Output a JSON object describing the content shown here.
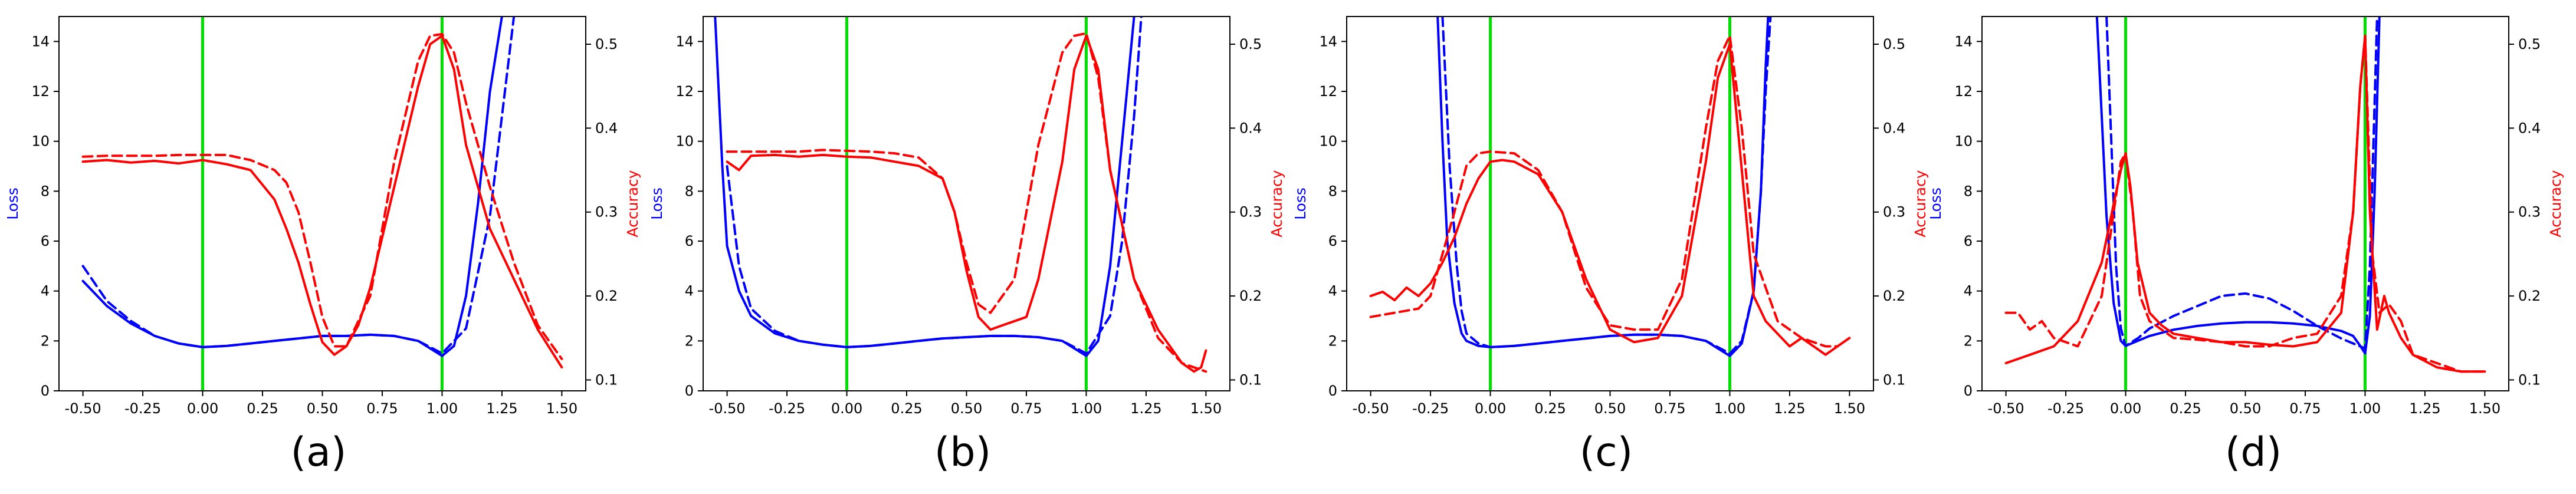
{
  "figure": {
    "colors": {
      "loss": "#0000ff",
      "accuracy": "#ff0000",
      "marker": "#00e000",
      "axes": "#000000"
    },
    "xticks": [
      -0.5,
      -0.25,
      0.0,
      0.25,
      0.5,
      0.75,
      1.0,
      1.25,
      1.5
    ],
    "xtick_labels": [
      "-0.50",
      "-0.25",
      "0.00",
      "0.25",
      "0.50",
      "0.75",
      "1.00",
      "1.25",
      "1.50"
    ],
    "loss_ticks": [
      0,
      2,
      4,
      6,
      8,
      10,
      12,
      14
    ],
    "acc_ticks": [
      0.1,
      0.2,
      0.3,
      0.4,
      0.5
    ],
    "acc_tick_labels": [
      "0.1",
      "0.2",
      "0.3",
      "0.4",
      "0.5"
    ],
    "loss_label": "Loss",
    "accuracy_label": "Accuracy"
  },
  "chart_data": [
    {
      "type": "line",
      "panel_label": "(a)",
      "xlim": [
        -0.6,
        1.6
      ],
      "ylim_loss": [
        0,
        15
      ],
      "ylim_acc": [
        0.087,
        0.533
      ],
      "xlabel": "",
      "ylabel_left": "Loss",
      "ylabel_right": "Accuracy",
      "vlines": [
        0.0,
        1.0
      ],
      "series": [
        {
          "name": "loss-solid",
          "axis": "loss",
          "style": "solid",
          "x": [
            -0.5,
            -0.4,
            -0.3,
            -0.2,
            -0.1,
            0.0,
            0.1,
            0.2,
            0.3,
            0.4,
            0.5,
            0.6,
            0.7,
            0.8,
            0.9,
            1.0,
            1.05,
            1.1,
            1.15,
            1.2,
            1.25
          ],
          "y": [
            4.4,
            3.4,
            2.7,
            2.2,
            1.9,
            1.75,
            1.8,
            1.9,
            2.0,
            2.1,
            2.2,
            2.2,
            2.25,
            2.2,
            2.0,
            1.4,
            1.8,
            3.8,
            7.5,
            12.0,
            15.0
          ]
        },
        {
          "name": "loss-dashed",
          "axis": "loss",
          "style": "dashed",
          "x": [
            -0.5,
            -0.4,
            -0.3,
            -0.2,
            -0.1,
            0.0,
            0.1,
            0.2,
            0.3,
            0.4,
            0.5,
            0.6,
            0.7,
            0.8,
            0.9,
            1.0,
            1.1,
            1.2,
            1.25,
            1.3
          ],
          "y": [
            5.0,
            3.6,
            2.8,
            2.2,
            1.9,
            1.75,
            1.8,
            1.9,
            2.0,
            2.1,
            2.2,
            2.2,
            2.25,
            2.2,
            2.0,
            1.5,
            2.5,
            7.0,
            11.0,
            15.0
          ]
        },
        {
          "name": "accuracy-solid",
          "axis": "accuracy",
          "style": "solid",
          "x": [
            -0.5,
            -0.4,
            -0.3,
            -0.2,
            -0.1,
            0.0,
            0.1,
            0.2,
            0.3,
            0.35,
            0.4,
            0.45,
            0.5,
            0.55,
            0.6,
            0.65,
            0.7,
            0.8,
            0.9,
            0.95,
            1.0,
            1.05,
            1.1,
            1.2,
            1.3,
            1.4,
            1.5
          ],
          "y": [
            0.36,
            0.362,
            0.359,
            0.361,
            0.358,
            0.362,
            0.357,
            0.35,
            0.315,
            0.28,
            0.24,
            0.19,
            0.145,
            0.13,
            0.14,
            0.165,
            0.21,
            0.33,
            0.45,
            0.5,
            0.51,
            0.47,
            0.38,
            0.28,
            0.22,
            0.16,
            0.115
          ]
        },
        {
          "name": "accuracy-dashed",
          "axis": "accuracy",
          "style": "dashed",
          "x": [
            -0.5,
            -0.4,
            -0.3,
            -0.2,
            -0.1,
            0.0,
            0.1,
            0.2,
            0.3,
            0.35,
            0.4,
            0.45,
            0.5,
            0.55,
            0.6,
            0.7,
            0.8,
            0.9,
            0.95,
            1.0,
            1.05,
            1.1,
            1.2,
            1.3,
            1.4,
            1.5
          ],
          "y": [
            0.366,
            0.367,
            0.367,
            0.367,
            0.368,
            0.368,
            0.368,
            0.362,
            0.35,
            0.335,
            0.3,
            0.24,
            0.175,
            0.14,
            0.14,
            0.2,
            0.36,
            0.48,
            0.51,
            0.512,
            0.49,
            0.43,
            0.33,
            0.24,
            0.165,
            0.125
          ]
        }
      ]
    },
    {
      "type": "line",
      "panel_label": "(b)",
      "xlim": [
        -0.6,
        1.6
      ],
      "ylim_loss": [
        0,
        15
      ],
      "ylim_acc": [
        0.087,
        0.533
      ],
      "xlabel": "",
      "ylabel_left": "Loss",
      "ylabel_right": "Accuracy",
      "vlines": [
        0.0,
        1.0
      ],
      "series": [
        {
          "name": "loss-solid",
          "axis": "loss",
          "style": "solid",
          "x": [
            -0.55,
            -0.52,
            -0.5,
            -0.45,
            -0.4,
            -0.3,
            -0.2,
            -0.1,
            0.0,
            0.1,
            0.2,
            0.3,
            0.4,
            0.5,
            0.6,
            0.7,
            0.8,
            0.9,
            1.0,
            1.05,
            1.1,
            1.15,
            1.2
          ],
          "y": [
            15.0,
            9.0,
            5.8,
            4.0,
            3.0,
            2.3,
            2.0,
            1.85,
            1.75,
            1.8,
            1.9,
            2.0,
            2.1,
            2.15,
            2.2,
            2.2,
            2.15,
            2.0,
            1.4,
            2.0,
            5.0,
            10.0,
            15.0
          ]
        },
        {
          "name": "loss-dashed",
          "axis": "loss",
          "style": "dashed",
          "x": [
            -0.5,
            -0.45,
            -0.4,
            -0.3,
            -0.2,
            -0.1,
            0.0,
            0.1,
            0.2,
            0.3,
            0.4,
            0.5,
            0.6,
            0.7,
            0.8,
            0.9,
            1.0,
            1.1,
            1.15,
            1.2,
            1.23
          ],
          "y": [
            9.0,
            5.0,
            3.3,
            2.4,
            2.0,
            1.85,
            1.75,
            1.8,
            1.9,
            2.0,
            2.1,
            2.15,
            2.2,
            2.2,
            2.15,
            2.0,
            1.5,
            3.0,
            6.0,
            11.0,
            15.0
          ]
        },
        {
          "name": "accuracy-solid",
          "axis": "accuracy",
          "style": "solid",
          "x": [
            -0.5,
            -0.45,
            -0.4,
            -0.3,
            -0.2,
            -0.1,
            0.0,
            0.1,
            0.2,
            0.3,
            0.4,
            0.45,
            0.5,
            0.55,
            0.6,
            0.65,
            0.7,
            0.75,
            0.8,
            0.9,
            0.95,
            1.0,
            1.05,
            1.1,
            1.2,
            1.3,
            1.4,
            1.45,
            1.48,
            1.5
          ],
          "y": [
            0.36,
            0.35,
            0.367,
            0.368,
            0.366,
            0.368,
            0.366,
            0.365,
            0.36,
            0.355,
            0.34,
            0.3,
            0.23,
            0.175,
            0.16,
            0.165,
            0.17,
            0.175,
            0.22,
            0.36,
            0.47,
            0.51,
            0.47,
            0.35,
            0.22,
            0.16,
            0.12,
            0.11,
            0.115,
            0.135
          ]
        },
        {
          "name": "accuracy-dashed",
          "axis": "accuracy",
          "style": "dashed",
          "x": [
            -0.5,
            -0.4,
            -0.3,
            -0.2,
            -0.1,
            0.0,
            0.1,
            0.2,
            0.3,
            0.4,
            0.45,
            0.5,
            0.55,
            0.6,
            0.7,
            0.8,
            0.9,
            0.95,
            1.0,
            1.05,
            1.1,
            1.2,
            1.3,
            1.4,
            1.5
          ],
          "y": [
            0.372,
            0.372,
            0.372,
            0.372,
            0.374,
            0.373,
            0.372,
            0.37,
            0.365,
            0.34,
            0.3,
            0.24,
            0.19,
            0.18,
            0.22,
            0.38,
            0.49,
            0.51,
            0.513,
            0.46,
            0.35,
            0.22,
            0.15,
            0.12,
            0.11
          ]
        }
      ]
    },
    {
      "type": "line",
      "panel_label": "(c)",
      "xlim": [
        -0.6,
        1.6
      ],
      "ylim_loss": [
        0,
        15
      ],
      "ylim_acc": [
        0.087,
        0.533
      ],
      "xlabel": "",
      "ylabel_left": "Loss",
      "ylabel_right": "Accuracy",
      "vlines": [
        0.0,
        1.0
      ],
      "series": [
        {
          "name": "loss-solid",
          "axis": "loss",
          "style": "solid",
          "x": [
            -0.22,
            -0.2,
            -0.18,
            -0.15,
            -0.12,
            -0.1,
            -0.05,
            0.0,
            0.1,
            0.2,
            0.3,
            0.4,
            0.5,
            0.6,
            0.7,
            0.8,
            0.9,
            1.0,
            1.05,
            1.1,
            1.13,
            1.15,
            1.16
          ],
          "y": [
            15.0,
            10.0,
            6.0,
            3.5,
            2.3,
            2.0,
            1.8,
            1.75,
            1.8,
            1.9,
            2.0,
            2.1,
            2.2,
            2.25,
            2.25,
            2.2,
            2.0,
            1.4,
            1.9,
            4.0,
            8.0,
            13.0,
            15.0
          ]
        },
        {
          "name": "loss-dashed",
          "axis": "loss",
          "style": "dashed",
          "x": [
            -0.2,
            -0.17,
            -0.14,
            -0.12,
            -0.1,
            -0.05,
            0.0,
            0.1,
            0.2,
            0.3,
            0.4,
            0.5,
            0.6,
            0.7,
            0.8,
            0.9,
            1.0,
            1.05,
            1.1,
            1.13,
            1.15,
            1.17
          ],
          "y": [
            15.0,
            9.0,
            5.0,
            3.2,
            2.3,
            1.9,
            1.75,
            1.8,
            1.9,
            2.0,
            2.1,
            2.2,
            2.25,
            2.25,
            2.2,
            2.0,
            1.5,
            2.0,
            4.0,
            8.0,
            12.0,
            15.0
          ]
        },
        {
          "name": "accuracy-solid",
          "axis": "accuracy",
          "style": "solid",
          "x": [
            -0.5,
            -0.45,
            -0.4,
            -0.35,
            -0.3,
            -0.25,
            -0.2,
            -0.15,
            -0.1,
            -0.05,
            0.0,
            0.05,
            0.1,
            0.2,
            0.3,
            0.4,
            0.5,
            0.6,
            0.7,
            0.8,
            0.9,
            0.95,
            1.0,
            1.05,
            1.1,
            1.15,
            1.2,
            1.25,
            1.3,
            1.35,
            1.4,
            1.45,
            1.5
          ],
          "y": [
            0.2,
            0.205,
            0.195,
            0.21,
            0.2,
            0.215,
            0.24,
            0.27,
            0.31,
            0.34,
            0.36,
            0.362,
            0.36,
            0.345,
            0.3,
            0.22,
            0.16,
            0.145,
            0.15,
            0.2,
            0.36,
            0.46,
            0.5,
            0.35,
            0.2,
            0.17,
            0.155,
            0.14,
            0.15,
            0.14,
            0.13,
            0.14,
            0.15
          ]
        },
        {
          "name": "accuracy-dashed",
          "axis": "accuracy",
          "style": "dashed",
          "x": [
            -0.5,
            -0.4,
            -0.3,
            -0.25,
            -0.2,
            -0.15,
            -0.1,
            -0.05,
            0.0,
            0.1,
            0.2,
            0.3,
            0.4,
            0.5,
            0.6,
            0.7,
            0.8,
            0.9,
            0.95,
            1.0,
            1.05,
            1.1,
            1.2,
            1.3,
            1.4,
            1.45
          ],
          "y": [
            0.175,
            0.18,
            0.185,
            0.2,
            0.25,
            0.3,
            0.355,
            0.37,
            0.372,
            0.37,
            0.35,
            0.3,
            0.21,
            0.165,
            0.16,
            0.16,
            0.22,
            0.4,
            0.48,
            0.51,
            0.4,
            0.25,
            0.17,
            0.15,
            0.14,
            0.14
          ]
        }
      ]
    },
    {
      "type": "line",
      "panel_label": "(d)",
      "xlim": [
        -0.6,
        1.6
      ],
      "ylim_loss": [
        0,
        15
      ],
      "ylim_acc": [
        0.087,
        0.533
      ],
      "xlabel": "",
      "ylabel_left": "Loss",
      "ylabel_right": "Accuracy",
      "vlines": [
        0.0,
        1.0
      ],
      "series": [
        {
          "name": "loss-solid",
          "axis": "loss",
          "style": "solid",
          "x": [
            -0.12,
            -0.1,
            -0.08,
            -0.05,
            -0.02,
            0.0,
            0.05,
            0.1,
            0.2,
            0.3,
            0.4,
            0.5,
            0.6,
            0.7,
            0.8,
            0.9,
            0.95,
            0.98,
            1.0,
            1.02,
            1.04,
            1.06
          ],
          "y": [
            15.0,
            11.0,
            7.0,
            3.5,
            2.0,
            1.8,
            2.0,
            2.2,
            2.45,
            2.6,
            2.7,
            2.75,
            2.75,
            2.7,
            2.6,
            2.4,
            2.2,
            1.8,
            1.5,
            3.0,
            8.0,
            15.0
          ]
        },
        {
          "name": "loss-dashed",
          "axis": "loss",
          "style": "dashed",
          "x": [
            -0.08,
            -0.06,
            -0.04,
            -0.02,
            0.0,
            0.05,
            0.1,
            0.2,
            0.3,
            0.4,
            0.5,
            0.6,
            0.7,
            0.8,
            0.9,
            0.95,
            1.0,
            1.02,
            1.05
          ],
          "y": [
            15.0,
            10.0,
            5.0,
            2.5,
            1.8,
            2.1,
            2.5,
            3.0,
            3.4,
            3.8,
            3.9,
            3.7,
            3.2,
            2.6,
            2.1,
            1.9,
            1.7,
            5.0,
            15.0
          ]
        },
        {
          "name": "accuracy-solid",
          "axis": "accuracy",
          "style": "solid",
          "x": [
            -0.5,
            -0.4,
            -0.3,
            -0.2,
            -0.1,
            -0.05,
            -0.02,
            0.0,
            0.02,
            0.05,
            0.1,
            0.15,
            0.2,
            0.3,
            0.4,
            0.5,
            0.6,
            0.7,
            0.8,
            0.9,
            0.95,
            0.98,
            1.0,
            1.02,
            1.05,
            1.08,
            1.1,
            1.15,
            1.2,
            1.3,
            1.4,
            1.5
          ],
          "y": [
            0.12,
            0.13,
            0.14,
            0.17,
            0.24,
            0.31,
            0.35,
            0.37,
            0.33,
            0.24,
            0.18,
            0.165,
            0.155,
            0.15,
            0.145,
            0.145,
            0.142,
            0.14,
            0.145,
            0.18,
            0.3,
            0.45,
            0.51,
            0.3,
            0.16,
            0.2,
            0.18,
            0.15,
            0.13,
            0.115,
            0.11,
            0.11
          ]
        },
        {
          "name": "accuracy-dashed",
          "axis": "accuracy",
          "style": "dashed",
          "x": [
            -0.5,
            -0.45,
            -0.4,
            -0.35,
            -0.3,
            -0.2,
            -0.1,
            -0.05,
            -0.02,
            0.0,
            0.03,
            0.06,
            0.1,
            0.2,
            0.3,
            0.4,
            0.5,
            0.6,
            0.7,
            0.8,
            0.9,
            0.95,
            0.98,
            1.0,
            1.03,
            1.06,
            1.1,
            1.15,
            1.2,
            1.3,
            1.4,
            1.5
          ],
          "y": [
            0.18,
            0.18,
            0.16,
            0.17,
            0.15,
            0.14,
            0.2,
            0.3,
            0.36,
            0.37,
            0.3,
            0.2,
            0.17,
            0.15,
            0.148,
            0.145,
            0.14,
            0.14,
            0.15,
            0.155,
            0.2,
            0.3,
            0.45,
            0.51,
            0.25,
            0.18,
            0.19,
            0.17,
            0.13,
            0.12,
            0.11,
            0.11
          ]
        }
      ]
    }
  ]
}
